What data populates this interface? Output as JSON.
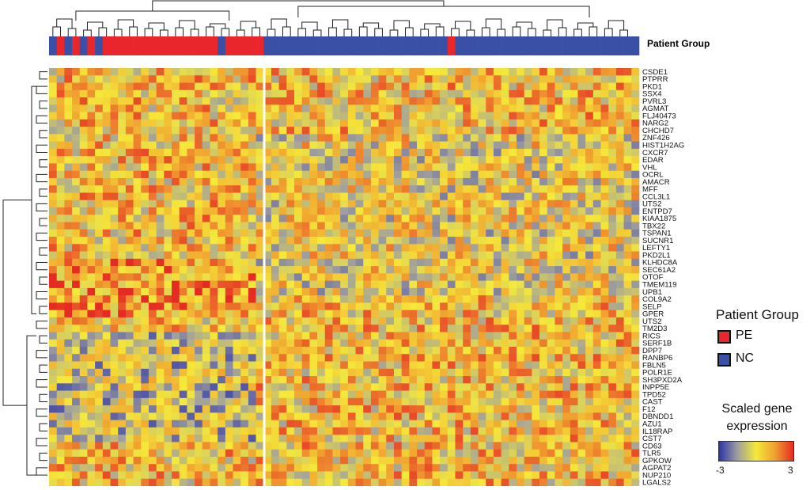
{
  "chart_data": {
    "type": "heatmap",
    "annotation_bar": {
      "label": "Patient Group",
      "groups": [
        "NC",
        "PE",
        "NC",
        "PE",
        "NC",
        "PE",
        "NC",
        "PE",
        "PE",
        "PE",
        "PE",
        "PE",
        "PE",
        "PE",
        "PE",
        "PE",
        "PE",
        "PE",
        "PE",
        "PE",
        "PE",
        "PE",
        "NC",
        "PE",
        "PE",
        "PE",
        "PE",
        "PE",
        "NC",
        "NC",
        "NC",
        "NC",
        "NC",
        "NC",
        "NC",
        "NC",
        "NC",
        "NC",
        "NC",
        "NC",
        "NC",
        "NC",
        "NC",
        "NC",
        "NC",
        "NC",
        "NC",
        "NC",
        "NC",
        "NC",
        "NC",
        "NC",
        "PE",
        "NC",
        "NC",
        "NC",
        "NC",
        "NC",
        "NC",
        "NC",
        "NC",
        "NC",
        "NC",
        "NC",
        "NC",
        "NC",
        "NC",
        "NC",
        "NC",
        "NC",
        "NC",
        "NC",
        "NC",
        "NC",
        "NC",
        "NC",
        "NC"
      ]
    },
    "genes": [
      "CSDE1",
      "PTPRR",
      "PKD1",
      "SSX4",
      "PVRL3",
      "AGMAT",
      "FLJ40473",
      "NARG2",
      "CHCHD7",
      "ZNF426",
      "HIST1H2AG",
      "CXCR7",
      "EDAR",
      "VHL",
      "OCRL",
      "AMACR",
      "MFF",
      "CCL3L1",
      "UTS2",
      "ENTPD7",
      "KIAA1875",
      "TBX22",
      "TSPAN1",
      "SUCNR1",
      "LEFTY1",
      "PKD2L1",
      "KLHDC8A",
      "SEC61A2",
      "OTOF",
      "TMEM119",
      "UPB1",
      "COL9A2",
      "SELP",
      "GPER",
      "UTS2",
      "TM2D3",
      "RICS",
      "SERF1B",
      "DPP7",
      "RANBP6",
      "FBLN5",
      "POLR1E",
      "SH3PXD2A",
      "INPP5E",
      "TPD52",
      "CAST",
      "F12",
      "DBNDD1",
      "AZU1",
      "IL18RAP",
      "CST7",
      "CD63",
      "TLR5",
      "GPKOW",
      "AGPAT2",
      "NUP210",
      "LGALS2"
    ],
    "legend": {
      "title": "Patient Group",
      "entries": [
        {
          "label": "PE",
          "color": "#e8262b"
        },
        {
          "label": "NC",
          "color": "#3a4fa6"
        }
      ]
    },
    "color_scale": {
      "title": "Scaled gene expression",
      "min": -3,
      "max": 3,
      "min_label": "-3",
      "max_label": "3",
      "colors": [
        "#2e34a8",
        "#9f9f9f",
        "#f5e93a",
        "#f0a030",
        "#e62a24"
      ]
    },
    "legend_title_lines": [
      "Scaled gene",
      "expression"
    ]
  }
}
